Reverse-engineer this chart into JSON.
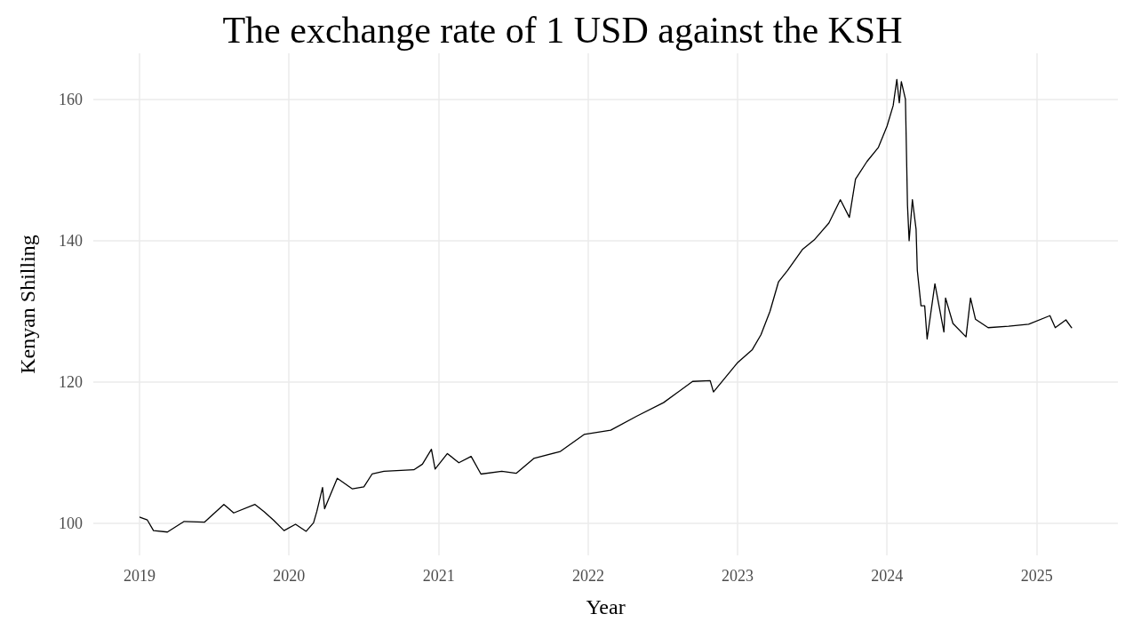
{
  "chart_data": {
    "type": "line",
    "title": "The exchange rate of 1 USD against the KSH",
    "xlabel": "Year",
    "ylabel": "Kenyan Shilling",
    "x": [
      "2019-01-02",
      "2019-01-20",
      "2019-02-04",
      "2019-03-10",
      "2019-04-20",
      "2019-06-09",
      "2019-06-22",
      "2019-07-26",
      "2019-08-19",
      "2019-10-10",
      "2019-11-01",
      "2019-11-24",
      "2019-12-20",
      "2020-01-17",
      "2020-02-12",
      "2020-03-01",
      "2020-03-09",
      "2020-03-23",
      "2020-03-28",
      "2020-04-28",
      "2020-06-04",
      "2020-07-02",
      "2020-07-22",
      "2020-08-20",
      "2020-11-01",
      "2020-11-22",
      "2020-12-14",
      "2020-12-23",
      "2021-01-22",
      "2021-02-19",
      "2021-03-21",
      "2021-04-14",
      "2021-06-04",
      "2021-07-09",
      "2021-08-21",
      "2021-10-25",
      "2021-12-22",
      "2022-02-25",
      "2022-04-30",
      "2022-07-04",
      "2022-09-13",
      "2022-10-26",
      "2022-11-03",
      "2022-12-31",
      "2023-02-06",
      "2023-02-27",
      "2023-03-21",
      "2023-04-11",
      "2023-05-03",
      "2023-06-09",
      "2023-07-07",
      "2023-08-12",
      "2023-09-09",
      "2023-10-01",
      "2023-10-16",
      "2023-11-13",
      "2023-12-11",
      "2024-01-01",
      "2024-01-16",
      "2024-01-25",
      "2024-01-31",
      "2024-02-05",
      "2024-02-15",
      "2024-02-20",
      "2024-02-24",
      "2024-03-03",
      "2024-03-12",
      "2024-03-15",
      "2024-03-24",
      "2024-04-02",
      "2024-04-08",
      "2024-04-27",
      "2024-05-19",
      "2024-05-23",
      "2024-06-10",
      "2024-07-12",
      "2024-07-23",
      "2024-08-04",
      "2024-09-04",
      "2024-10-24",
      "2024-12-12",
      "2025-02-02",
      "2025-02-15",
      "2025-03-13",
      "2025-03-27"
    ],
    "series": [
      {
        "color": "#000000",
        "values": [
          100.9,
          100.5,
          99.0,
          98.8,
          100.3,
          100.2,
          100.9,
          102.7,
          101.5,
          102.7,
          101.7,
          100.5,
          99.0,
          99.9,
          98.9,
          100.1,
          101.7,
          105.1,
          102.1,
          106.4,
          104.9,
          105.2,
          107.0,
          107.4,
          107.6,
          108.4,
          110.5,
          107.7,
          109.9,
          108.6,
          109.5,
          107.0,
          107.4,
          107.1,
          109.2,
          110.2,
          112.6,
          113.2,
          115.2,
          117.1,
          120.1,
          120.2,
          118.6,
          122.7,
          124.6,
          126.7,
          130.0,
          134.2,
          135.8,
          138.8,
          140.1,
          142.5,
          145.8,
          143.3,
          148.7,
          151.2,
          153.2,
          156.2,
          159.1,
          162.8,
          159.5,
          162.5,
          160.0,
          145.0,
          140.0,
          145.8,
          141.6,
          135.8,
          130.8,
          130.8,
          126.1,
          133.9,
          127.1,
          131.9,
          128.3,
          126.4,
          131.9,
          128.9,
          127.7,
          127.9,
          128.2,
          129.4,
          127.7,
          128.8,
          127.7
        ]
      }
    ],
    "xlim": [
      "2018-09-10",
      "2025-07-18"
    ],
    "xticks": [
      "2019",
      "2020",
      "2021",
      "2022",
      "2023",
      "2024",
      "2025"
    ],
    "ylim": [
      95.5,
      166.5
    ],
    "yticks": [
      100,
      120,
      140,
      160
    ],
    "grid": true,
    "marker": "none",
    "line_style": "solid"
  }
}
